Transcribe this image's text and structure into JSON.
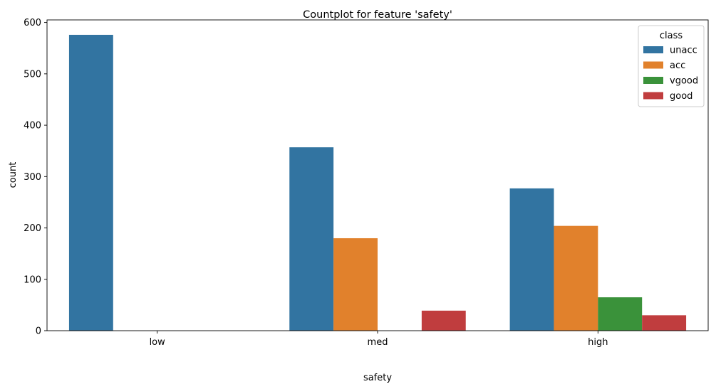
{
  "chart_data": {
    "type": "bar",
    "title": "Countplot for feature 'safety'",
    "xlabel": "safety",
    "ylabel": "count",
    "categories": [
      "low",
      "med",
      "high"
    ],
    "ylim": [
      0,
      605
    ],
    "yticks": [
      0,
      100,
      200,
      300,
      400,
      500,
      600
    ],
    "grid": false,
    "legend": {
      "title": "class",
      "placement": "top-right"
    },
    "series": [
      {
        "name": "unacc",
        "color": "#3274a1",
        "values": [
          576,
          357,
          277
        ]
      },
      {
        "name": "acc",
        "color": "#e1812c",
        "values": [
          0,
          180,
          204
        ]
      },
      {
        "name": "vgood",
        "color": "#3a923a",
        "values": [
          0,
          0,
          65
        ]
      },
      {
        "name": "good",
        "color": "#c03d3e",
        "values": [
          0,
          39,
          30
        ]
      }
    ]
  }
}
